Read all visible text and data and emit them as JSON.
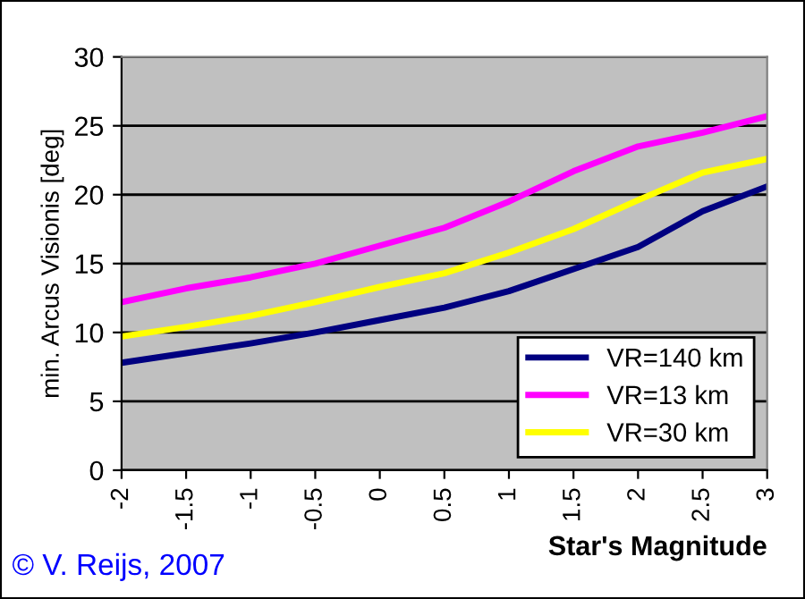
{
  "chart_data": {
    "type": "line",
    "xlabel": "Star's Magnitude",
    "ylabel": "min. Arcus Visionis [deg]",
    "x": [
      -2,
      -1.5,
      -1,
      -0.5,
      0,
      0.5,
      1,
      1.5,
      2,
      2.5,
      3
    ],
    "series": [
      {
        "name": "VR=140 km",
        "color": "#000080",
        "values": [
          7.8,
          8.5,
          9.2,
          10.0,
          10.9,
          11.8,
          13.0,
          14.6,
          16.2,
          18.8,
          20.6
        ]
      },
      {
        "name": "VR=13 km",
        "color": "#ff00ff",
        "values": [
          12.2,
          13.2,
          14.0,
          15.0,
          16.3,
          17.6,
          19.5,
          21.7,
          23.5,
          24.5,
          25.7
        ]
      },
      {
        "name": "VR=30 km",
        "color": "#ffff00",
        "values": [
          9.7,
          10.4,
          11.2,
          12.2,
          13.3,
          14.3,
          15.8,
          17.5,
          19.6,
          21.6,
          22.6
        ]
      }
    ],
    "xlim": [
      -2,
      3
    ],
    "xticks": [
      -2,
      -1.5,
      -1,
      -0.5,
      0,
      0.5,
      1,
      1.5,
      2,
      2.5,
      3
    ],
    "ylim": [
      0,
      30
    ],
    "yticks": [
      0,
      5,
      10,
      15,
      20,
      25,
      30
    ],
    "grid": "y",
    "legend": "bottom right",
    "marker": "none",
    "line_style": "solid",
    "annotations": [
      "© V. Reijs, 2007"
    ]
  }
}
